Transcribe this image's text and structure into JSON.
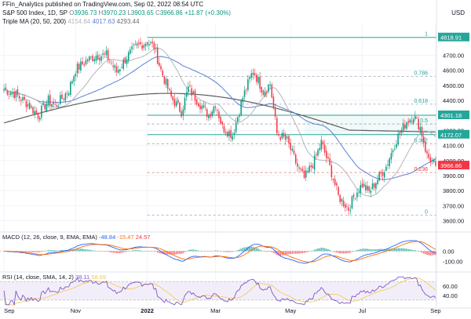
{
  "header": {
    "published": "FFin_Analytics published on TradingView.com, Sep 02, 2022 08:54 UTC",
    "symbol": "S&P 500 Index, 1D, SP",
    "ohlc": [
      {
        "label": "O",
        "value": "3936.73"
      },
      {
        "label": "H",
        "value": "3970.23"
      },
      {
        "label": "L",
        "value": "3903.65"
      },
      {
        "label": "C",
        "value": "3966.86"
      },
      {
        "label": "",
        "value": "+11.87 (+0.30%)"
      }
    ],
    "ma_title": "Triple MA (20, 50, 200)",
    "ma_values": [
      "4154.84",
      "4017.63",
      "4293.44"
    ],
    "currency": "USD"
  },
  "colors": {
    "up": "#089981",
    "down": "#f23645",
    "ma20": "#b2b5be",
    "ma50": "#5b7fd6",
    "ma200": "#5d5d5d",
    "fib_main": "#26a69a",
    "fib_dash": "#9ea3ad",
    "price_red": "#f23645",
    "macd": "#2962ff",
    "signal": "#ff6d00",
    "rsi": "#7e57c2",
    "rsi_band": "#ede7f6"
  },
  "chart_data": [
    {
      "type": "candlestick",
      "title": "S&P 500 Index, 1D, SP",
      "xlabel": "",
      "ylabel": "",
      "ylim": [
        3540,
        4880
      ],
      "grid": true,
      "x_ticks": [
        {
          "label": "Sep",
          "pos": 0
        },
        {
          "label": "Nov",
          "pos": 42
        },
        {
          "label": "2022",
          "pos": 84
        },
        {
          "label": "Mar",
          "pos": 124
        },
        {
          "label": "May",
          "pos": 168
        },
        {
          "label": "Jul",
          "pos": 210
        },
        {
          "label": "Sep",
          "pos": 253
        }
      ],
      "y_ticks": [
        3600,
        3700,
        3800,
        3900,
        4000,
        4100,
        4200,
        4300,
        4400,
        4500,
        4600,
        4700
      ],
      "fib_levels": [
        {
          "ratio": "1",
          "price": 4818.91,
          "label": "4818.91",
          "style": "solid"
        },
        {
          "ratio": "0.786",
          "price": 4560,
          "label": "",
          "style": "dashed"
        },
        {
          "ratio": "0.618",
          "price": 4375,
          "label": "",
          "style": "dashed"
        },
        {
          "ratio": "0.5",
          "price": 4243,
          "label": "",
          "style": "dashed"
        },
        {
          "ratio": "",
          "price": 4301.18,
          "label": "4301.18",
          "style": "solid"
        },
        {
          "ratio": "",
          "price": 4172.07,
          "label": "4172.07",
          "style": "solid"
        },
        {
          "ratio": "0.382",
          "price": 4112,
          "label": "",
          "style": "dashed"
        },
        {
          "ratio": "0.236",
          "price": 3920,
          "label": "",
          "style": "dashed-red"
        },
        {
          "ratio": "0",
          "price": 3636,
          "label": "",
          "style": "dashed"
        }
      ],
      "last_price": {
        "value": 3966.86,
        "label": "3966.86"
      },
      "waypoints": [
        [
          0,
          4475
        ],
        [
          6,
          4445
        ],
        [
          14,
          4375
        ],
        [
          20,
          4300
        ],
        [
          26,
          4400
        ],
        [
          30,
          4360
        ],
        [
          38,
          4470
        ],
        [
          42,
          4605
        ],
        [
          48,
          4660
        ],
        [
          54,
          4700
        ],
        [
          60,
          4700
        ],
        [
          66,
          4590
        ],
        [
          72,
          4690
        ],
        [
          78,
          4760
        ],
        [
          84,
          4790
        ],
        [
          88,
          4755
        ],
        [
          92,
          4600
        ],
        [
          98,
          4420
        ],
        [
          104,
          4325
        ],
        [
          108,
          4480
        ],
        [
          114,
          4390
        ],
        [
          120,
          4300
        ],
        [
          124,
          4380
        ],
        [
          128,
          4220
        ],
        [
          134,
          4170
        ],
        [
          140,
          4420
        ],
        [
          146,
          4600
        ],
        [
          152,
          4460
        ],
        [
          156,
          4510
        ],
        [
          160,
          4180
        ],
        [
          166,
          4130
        ],
        [
          172,
          3960
        ],
        [
          176,
          3880
        ],
        [
          182,
          4000
        ],
        [
          186,
          4120
        ],
        [
          192,
          3920
        ],
        [
          196,
          3760
        ],
        [
          202,
          3680
        ],
        [
          206,
          3780
        ],
        [
          210,
          3840
        ],
        [
          214,
          3790
        ],
        [
          218,
          3860
        ],
        [
          224,
          3960
        ],
        [
          230,
          4140
        ],
        [
          236,
          4260
        ],
        [
          240,
          4300
        ],
        [
          244,
          4220
        ],
        [
          248,
          4030
        ],
        [
          253,
          3966.86
        ]
      ]
    },
    {
      "type": "macd",
      "title": "MACD (12, 26, close, 9, EMA, EMA)",
      "values": [
        "-48.84",
        "-15.47",
        "24.57"
      ],
      "ylim": [
        -180,
        110
      ],
      "y_ticks": [
        {
          "label": "0.00",
          "v": 0
        },
        {
          "label": "-100.00",
          "v": -100
        }
      ]
    },
    {
      "type": "rsi",
      "title": "RSI (14, close, SMA, 14, 2)",
      "values": [
        "38.11",
        "58.69"
      ],
      "ylim": [
        18,
        82
      ],
      "bands": [
        30,
        70
      ],
      "y_ticks": [
        {
          "label": "60.00",
          "v": 60
        },
        {
          "label": "40.00",
          "v": 40
        }
      ]
    }
  ]
}
